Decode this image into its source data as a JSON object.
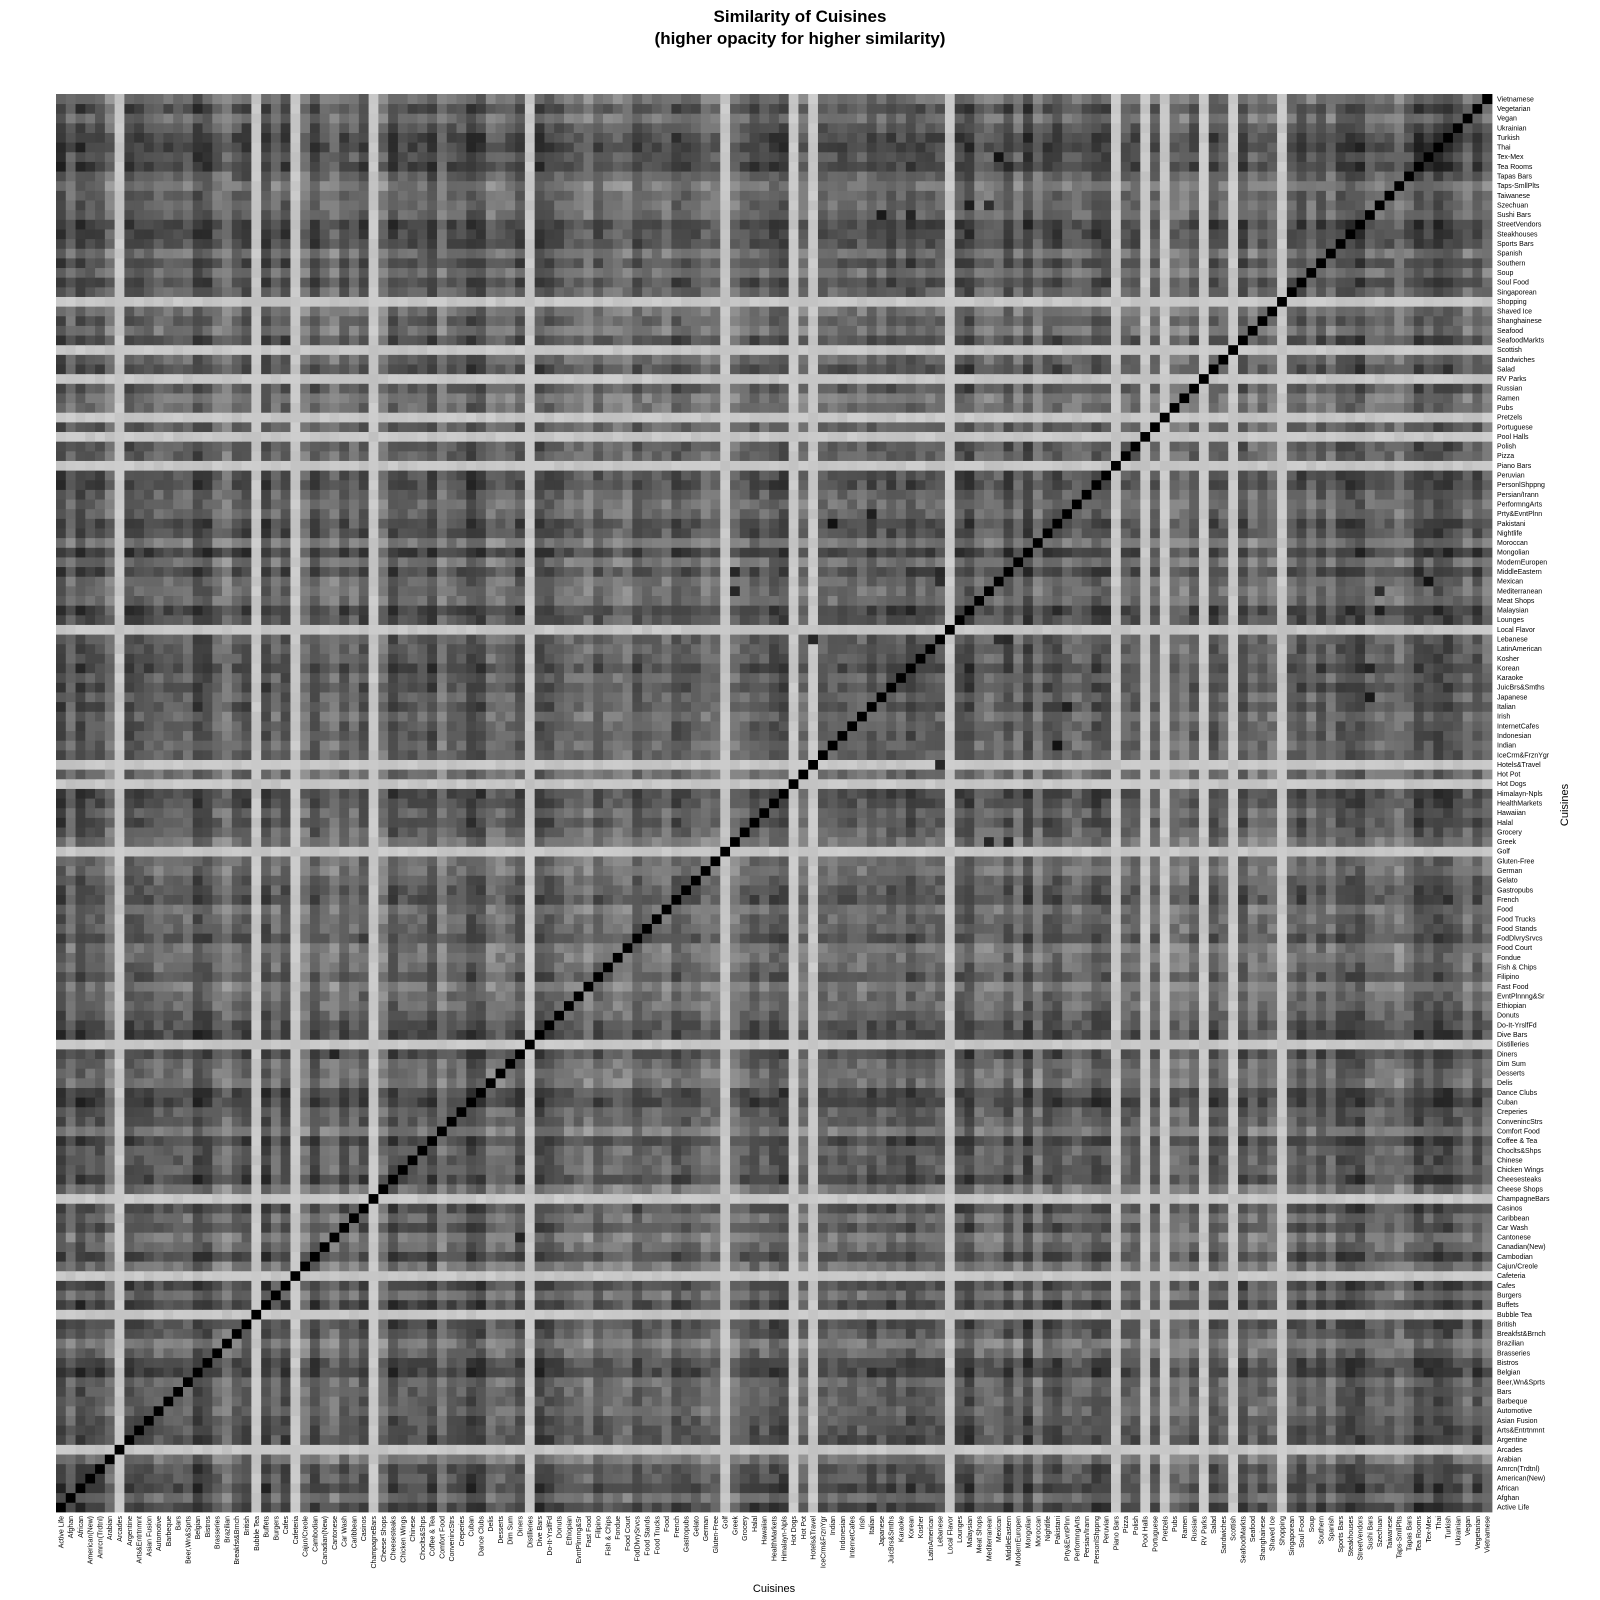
{
  "chart_data": {
    "type": "heatmap",
    "title_line1": "Similarity of Cuisines",
    "title_line2": "(higher opacity for higher similarity)",
    "xlabel": "Cuisines",
    "ylabel": "Cuisines",
    "value_range": [
      0,
      1
    ],
    "diagonal_value": 1,
    "color_scale": "white (low similarity) to black (high similarity)",
    "x_categories": [
      "Active Life",
      "Afghan",
      "African",
      "American(New)",
      "Amrcn(Trdtnl)",
      "Arabian",
      "Arcades",
      "Argentine",
      "Arts&Entrtnmnt",
      "Asian Fusion",
      "Automotive",
      "Barbeque",
      "Bars",
      "Beer,Wn&Sprts",
      "Belgian",
      "Bistros",
      "Brasseries",
      "Brazilian",
      "Breakfst&Brnch",
      "British",
      "Bubble Tea",
      "Buffets",
      "Burgers",
      "Cafes",
      "Cafeteria",
      "Cajun/Creole",
      "Cambodian",
      "Canadian(New)",
      "Cantonese",
      "Car Wash",
      "Caribbean",
      "Casinos",
      "ChampagneBars",
      "Cheese Shops",
      "Cheesesteaks",
      "Chicken Wings",
      "Chinese",
      "Choclts&Shps",
      "Coffee & Tea",
      "Comfort Food",
      "ConvenincStrs",
      "Creperies",
      "Cuban",
      "Dance Clubs",
      "Delis",
      "Desserts",
      "Dim Sum",
      "Diners",
      "Distilleries",
      "Dive Bars",
      "Do-It-YrslfFd",
      "Donuts",
      "Ethiopian",
      "EvntPlnnng&Sr",
      "Fast Food",
      "Filipino",
      "Fish & Chips",
      "Fondue",
      "Food Court",
      "FodDlvrySrvcs",
      "Food Stands",
      "Food Trucks",
      "Food",
      "French",
      "Gastropubs",
      "Gelato",
      "German",
      "Gluten-Free",
      "Golf",
      "Greek",
      "Grocery",
      "Halal",
      "Hawaiian",
      "HealthMarkets",
      "Himalayn-Npls",
      "Hot Dogs",
      "Hot Pot",
      "Hotels&Travel",
      "IceCrm&FrznYgr",
      "Indian",
      "Indonesian",
      "InternetCafes",
      "Irish",
      "Italian",
      "Japanese",
      "JuicBrs&Smths",
      "Karaoke",
      "Korean",
      "Kosher",
      "LatinAmerican",
      "Lebanese",
      "Local Flavor",
      "Lounges",
      "Malaysian",
      "Meat Shops",
      "Mediterranean",
      "Mexican",
      "MiddleEastern",
      "ModernEuropen",
      "Mongolian",
      "Moroccan",
      "Nightlife",
      "Pakistani",
      "Prty&EvntPlnn",
      "PerformngArts",
      "Persian/Irann",
      "PersonlShppng",
      "Peruvian",
      "Piano Bars",
      "Pizza",
      "Polish",
      "Pool Halls",
      "Portuguese",
      "Pretzels",
      "Pubs",
      "Ramen",
      "Russian",
      "RV Parks",
      "Salad",
      "Sandwiches",
      "Scottish",
      "SeafoodMarkts",
      "Seafood",
      "Shanghainese",
      "Shaved Ice",
      "Shopping",
      "Singaporean",
      "Soul Food",
      "Soup",
      "Southern",
      "Spanish",
      "Sports Bars",
      "Steakhouses",
      "StreetVendors",
      "Sushi Bars",
      "Szechuan",
      "Taiwanese",
      "Taps-SmllPlts",
      "Tapas Bars",
      "Tea Rooms",
      "Tex-Mex",
      "Thai",
      "Turkish",
      "Ukrainian",
      "Vegan",
      "Vegetarian",
      "Vietnamese"
    ],
    "y_categories": [
      "Active Life",
      "Afghan",
      "African",
      "American(New)",
      "Amrcn(Trdtnl)",
      "Arabian",
      "Arcades",
      "Argentine",
      "Arts&Entrtnmnt",
      "Asian Fusion",
      "Automotive",
      "Barbeque",
      "Bars",
      "Beer,Wn&Sprts",
      "Belgian",
      "Bistros",
      "Brasseries",
      "Brazilian",
      "Breakfst&Brnch",
      "British",
      "Bubble Tea",
      "Buffets",
      "Burgers",
      "Cafes",
      "Cafeteria",
      "Cajun/Creole",
      "Cambodian",
      "Canadian(New)",
      "Cantonese",
      "Car Wash",
      "Caribbean",
      "Casinos",
      "ChampagneBars",
      "Cheese Shops",
      "Cheesesteaks",
      "Chicken Wings",
      "Chinese",
      "Choclts&Shps",
      "Coffee & Tea",
      "Comfort Food",
      "ConvenincStrs",
      "Creperies",
      "Cuban",
      "Dance Clubs",
      "Delis",
      "Desserts",
      "Dim Sum",
      "Diners",
      "Distilleries",
      "Dive Bars",
      "Do-It-YrslfFd",
      "Donuts",
      "Ethiopian",
      "EvntPlnnng&Sr",
      "Fast Food",
      "Filipino",
      "Fish & Chips",
      "Fondue",
      "Food Court",
      "FodDlvrySrvcs",
      "Food Stands",
      "Food Trucks",
      "Food",
      "French",
      "Gastropubs",
      "Gelato",
      "German",
      "Gluten-Free",
      "Golf",
      "Greek",
      "Grocery",
      "Halal",
      "Hawaiian",
      "HealthMarkets",
      "Himalayn-Npls",
      "Hot Dogs",
      "Hot Pot",
      "Hotels&Travel",
      "IceCrm&FrznYgr",
      "Indian",
      "Indonesian",
      "InternetCafes",
      "Irish",
      "Italian",
      "Japanese",
      "JuicBrs&Smths",
      "Karaoke",
      "Korean",
      "Kosher",
      "LatinAmerican",
      "Lebanese",
      "Local Flavor",
      "Lounges",
      "Malaysian",
      "Meat Shops",
      "Mediterranean",
      "Mexican",
      "MiddleEastern",
      "ModernEuropen",
      "Mongolian",
      "Moroccan",
      "Nightlife",
      "Pakistani",
      "Prty&EvntPlnn",
      "PerformngArts",
      "Persian/Irann",
      "PersonlShppng",
      "Peruvian",
      "Piano Bars",
      "Pizza",
      "Polish",
      "Pool Halls",
      "Portuguese",
      "Pretzels",
      "Pubs",
      "Ramen",
      "Russian",
      "RV Parks",
      "Salad",
      "Sandwiches",
      "Scottish",
      "SeafoodMarkts",
      "Seafood",
      "Shanghainese",
      "Shaved Ice",
      "Shopping",
      "Singaporean",
      "Soul Food",
      "Soup",
      "Southern",
      "Spanish",
      "Sports Bars",
      "Steakhouses",
      "StreetVendors",
      "Sushi Bars",
      "Szechuan",
      "Taiwanese",
      "Taps-SmllPlts",
      "Tapas Bars",
      "Tea Rooms",
      "Tex-Mex",
      "Thai",
      "Turkish",
      "Ukrainian",
      "Vegan",
      "Vegetarian",
      "Vietnamese"
    ],
    "low_similarity_categories": [
      "Arcades",
      "Bubble Tea",
      "Cafeteria",
      "ChampagneBars",
      "Distilleries",
      "Golf",
      "Hot Dogs",
      "Hotels&Travel",
      "Internet Cafes",
      "Local Flavor",
      "Piano Bars",
      "Pool Halls",
      "Pretzels",
      "RV Parks",
      "Scottish",
      "Shopping"
    ],
    "typical_similarity": 0.62,
    "low_similarity_level": 0.22,
    "strong_pairs": [
      {
        "a": "Indian",
        "b": "Pakistani",
        "value": 0.93
      },
      {
        "a": "Mexican",
        "b": "Tex-Mex",
        "value": 0.93
      },
      {
        "a": "Japanese",
        "b": "Sushi Bars",
        "value": 0.9
      },
      {
        "a": "Korean",
        "b": "Sushi Bars",
        "value": 0.86
      },
      {
        "a": "Szechuan",
        "b": "Malaysian",
        "value": 0.88
      },
      {
        "a": "Szechuan",
        "b": "Mediterranean",
        "value": 0.82
      },
      {
        "a": "Hotels&Travel",
        "b": "Lebanese",
        "value": 0.85
      },
      {
        "a": "Mexican",
        "b": "Lebanese",
        "value": 0.82
      },
      {
        "a": "Cantonese",
        "b": "Diners",
        "value": 0.86
      },
      {
        "a": "Prty&EvntPlnn",
        "b": "Italian",
        "value": 0.88
      },
      {
        "a": "Greek",
        "b": "Mediterranean",
        "value": 0.85
      },
      {
        "a": "Greek",
        "b": "MiddleEastern",
        "value": 0.85
      },
      {
        "a": "Lebanese",
        "b": "MiddleEastern",
        "value": 0.84
      }
    ]
  }
}
